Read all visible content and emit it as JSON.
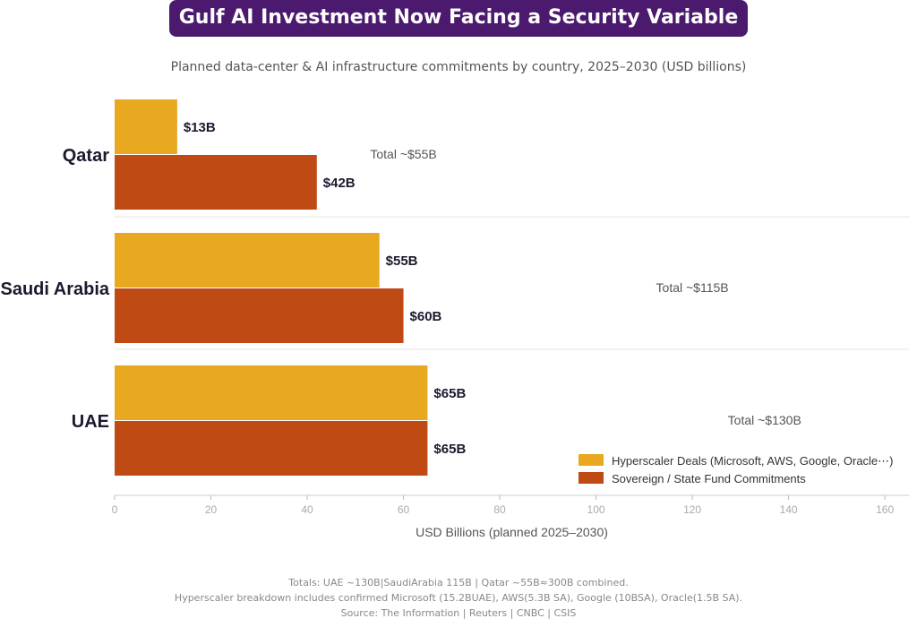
{
  "title": "Gulf AI Investment Now Facing a Security Variable",
  "subtitle": "Planned data-center & AI infrastructure commitments by country, 2025–2030  (USD billions)",
  "colors": {
    "title_bg": "#4b1a6e",
    "hyperscaler": "#e8a820",
    "sovereign": "#bf4a14"
  },
  "chart_data": {
    "type": "bar",
    "orientation": "horizontal",
    "categories": [
      "Qatar",
      "Saudi Arabia",
      "UAE"
    ],
    "series": [
      {
        "name": "Hyperscaler Deals (Microsoft, AWS, Google, Oracle⋯)",
        "values": [
          13,
          55,
          65
        ],
        "labels": [
          "$13B",
          "$55B",
          "$65B"
        ]
      },
      {
        "name": "Sovereign / State Fund Commitments",
        "values": [
          42,
          60,
          65
        ],
        "labels": [
          "$42B",
          "$60B",
          "$65B"
        ]
      }
    ],
    "totals": [
      {
        "label": "Total  ~$55B",
        "value": 55
      },
      {
        "label": "Total  ~$115B",
        "value": 115
      },
      {
        "label": "Total  ~$130B",
        "value": 130
      }
    ],
    "xlabel": "USD Billions (planned 2025–2030)",
    "xlim": [
      0,
      165
    ],
    "xticks": [
      0,
      20,
      40,
      60,
      80,
      100,
      120,
      140,
      160
    ],
    "legend_position": "bottom-right"
  },
  "footer": {
    "line1": "Totals: UAE ~130B|SaudiArabia 115B | Qatar ~55B≈300B combined.",
    "line2": "Hyperscaler breakdown includes confirmed Microsoft (15.2BUAE), AWS(5.3B SA), Google (10BSA), Oracle(1.5B SA).",
    "line3": "Source: The Information | Reuters | CNBC | CSIS"
  }
}
